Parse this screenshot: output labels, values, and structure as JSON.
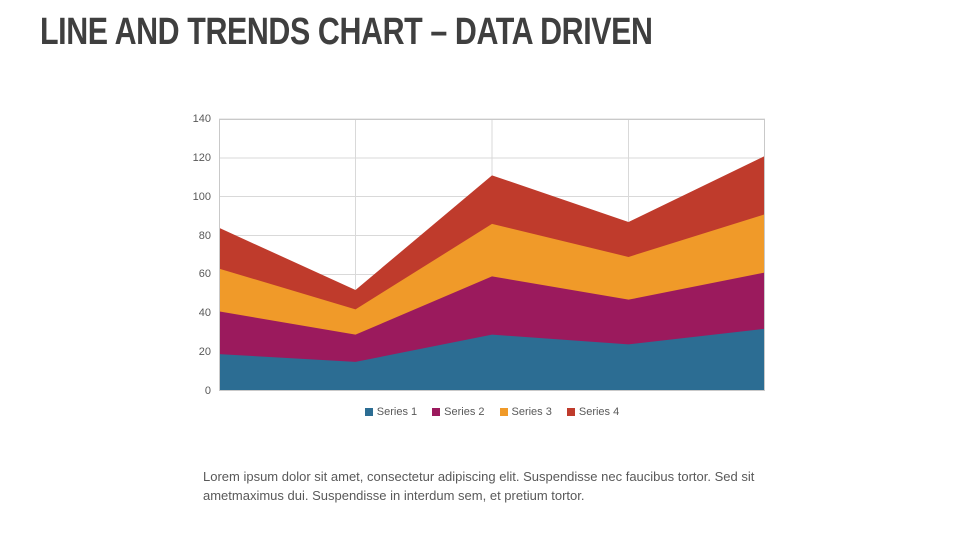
{
  "slide": {
    "title": "LINE AND TRENDS CHART – DATA DRIVEN",
    "body_lines": [
      "Lorem ipsum dolor sit amet, consectetur adipiscing elit. Suspendisse nec faucibus tortor. Sed sit",
      "ametmaximus dui. Suspendisse in interdum sem, et pretium tortor."
    ]
  },
  "chart_data": {
    "type": "area",
    "stacked": true,
    "title": "",
    "xlabel": "",
    "ylabel": "",
    "x": [
      1,
      2,
      3,
      4,
      5
    ],
    "categories": [
      "",
      "",
      "",
      "",
      ""
    ],
    "series": [
      {
        "name": "Series 1",
        "color": "#2C6D93",
        "values": [
          19,
          15,
          29,
          24,
          32
        ]
      },
      {
        "name": "Series 2",
        "color": "#9B1A5D",
        "values": [
          22,
          14,
          30,
          23,
          29
        ]
      },
      {
        "name": "Series 3",
        "color": "#F09A29",
        "values": [
          22,
          13,
          27,
          22,
          30
        ]
      },
      {
        "name": "Series 4",
        "color": "#BF3B2C",
        "values": [
          21,
          10,
          25,
          18,
          30
        ]
      }
    ],
    "stacked_totals": [
      84,
      52,
      111,
      87,
      121
    ],
    "ylim": [
      0,
      140
    ],
    "yticks": [
      0,
      20,
      40,
      60,
      80,
      100,
      120,
      140
    ],
    "grid": true,
    "grid_color": "#D9D9D9",
    "axis_border_color": "#C9C9C9",
    "tick_label_color": "#595959",
    "legend_position": "bottom",
    "legend_labels": [
      "Series 1",
      "Series 2",
      "Series 3",
      "Series 4"
    ]
  }
}
